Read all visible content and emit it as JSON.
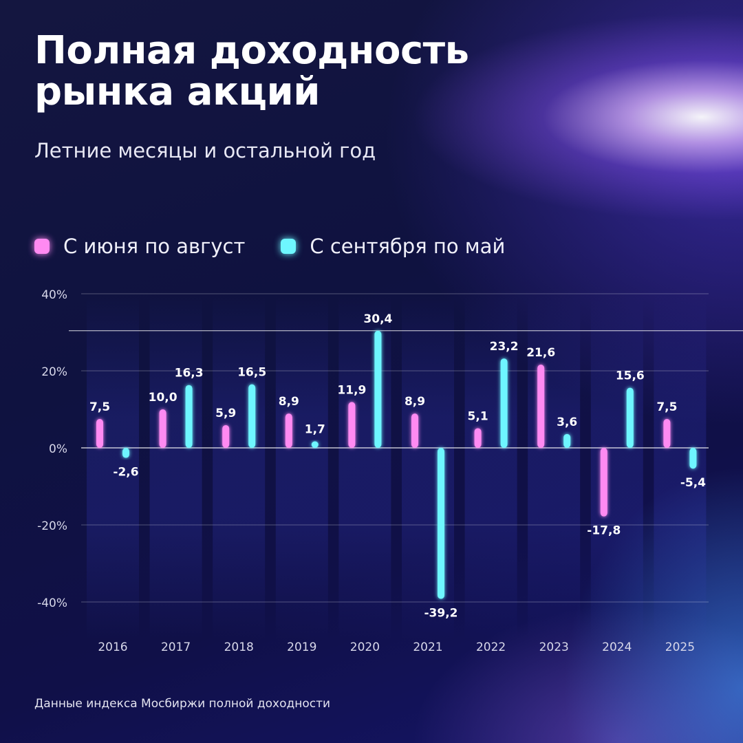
{
  "header": {
    "title": "Полная доходность рынка акций",
    "subtitle": "Летние месяцы и остальной год"
  },
  "legend": [
    {
      "label": "С июня по август",
      "color": "#ff8af2"
    },
    {
      "label": "С сентября по май",
      "color": "#6ef6ff"
    }
  ],
  "footnote": "Данные индекса Мосбиржи полной доходности",
  "chart_data": {
    "type": "bar",
    "categories": [
      "2016",
      "2017",
      "2018",
      "2019",
      "2020",
      "2021",
      "2022",
      "2023",
      "2024",
      "2025"
    ],
    "series": [
      {
        "name": "С июня по август",
        "color": "#ff8af2",
        "values": [
          7.5,
          10.0,
          5.9,
          8.9,
          11.9,
          8.9,
          5.1,
          21.6,
          -17.8,
          7.5
        ],
        "labels": [
          "7,5",
          "10,0",
          "5,9",
          "8,9",
          "11,9",
          "8,9",
          "5,1",
          "21,6",
          "-17,8",
          "7,5"
        ]
      },
      {
        "name": "С сентября по май",
        "color": "#6ef6ff",
        "values": [
          -2.6,
          16.3,
          16.5,
          1.7,
          30.4,
          -39.2,
          23.2,
          3.6,
          15.6,
          -5.4
        ],
        "labels": [
          "-2,6",
          "16,3",
          "16,5",
          "1,7",
          "30,4",
          "-39,2",
          "23,2",
          "3,6",
          "15,6",
          "-5,4"
        ]
      }
    ],
    "ylim": [
      -40,
      40
    ],
    "yticks": [
      40,
      20,
      0,
      -20,
      -40
    ],
    "ytick_labels": [
      "40%",
      "20%",
      "0%",
      "-20%",
      "-40%"
    ],
    "grid": true,
    "reference_line": 30.4,
    "legend_position": "top-left"
  }
}
